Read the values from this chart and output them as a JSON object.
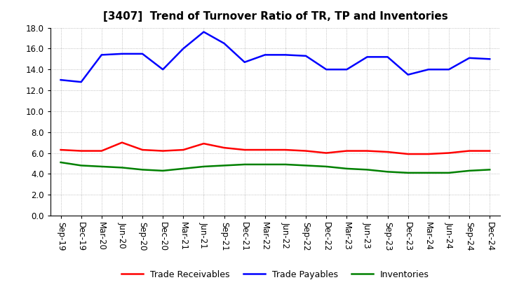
{
  "title": "[3407]  Trend of Turnover Ratio of TR, TP and Inventories",
  "x_labels": [
    "Sep-19",
    "Dec-19",
    "Mar-20",
    "Jun-20",
    "Sep-20",
    "Dec-20",
    "Mar-21",
    "Jun-21",
    "Sep-21",
    "Dec-21",
    "Mar-22",
    "Jun-22",
    "Sep-22",
    "Dec-22",
    "Mar-23",
    "Jun-23",
    "Sep-23",
    "Dec-23",
    "Mar-24",
    "Jun-24",
    "Sep-24",
    "Dec-24"
  ],
  "trade_receivables": [
    6.3,
    6.2,
    6.2,
    7.0,
    6.3,
    6.2,
    6.3,
    6.9,
    6.5,
    6.3,
    6.3,
    6.3,
    6.2,
    6.0,
    6.2,
    6.2,
    6.1,
    5.9,
    5.9,
    6.0,
    6.2,
    6.2
  ],
  "trade_payables": [
    13.0,
    12.8,
    15.4,
    15.5,
    15.5,
    14.0,
    16.0,
    17.6,
    16.5,
    14.7,
    15.4,
    15.4,
    15.3,
    14.0,
    14.0,
    15.2,
    15.2,
    13.5,
    14.0,
    14.0,
    15.1,
    15.0
  ],
  "inventories": [
    5.1,
    4.8,
    4.7,
    4.6,
    4.4,
    4.3,
    4.5,
    4.7,
    4.8,
    4.9,
    4.9,
    4.9,
    4.8,
    4.7,
    4.5,
    4.4,
    4.2,
    4.1,
    4.1,
    4.1,
    4.3,
    4.4
  ],
  "ylim": [
    0.0,
    18.0
  ],
  "yticks": [
    0.0,
    2.0,
    4.0,
    6.0,
    8.0,
    10.0,
    12.0,
    14.0,
    16.0,
    18.0
  ],
  "colors": {
    "trade_receivables": "#ff0000",
    "trade_payables": "#0000ff",
    "inventories": "#008000"
  },
  "legend_labels": [
    "Trade Receivables",
    "Trade Payables",
    "Inventories"
  ],
  "background_color": "#ffffff",
  "grid_color": "#999999",
  "title_fontsize": 11,
  "tick_fontsize": 8.5,
  "linewidth": 1.8
}
